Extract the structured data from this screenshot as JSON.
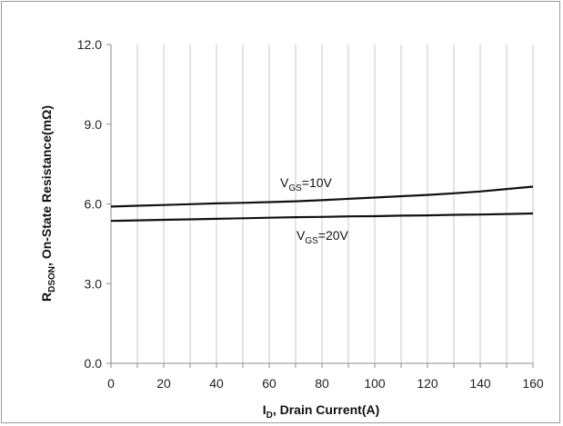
{
  "chart_data": {
    "type": "line",
    "xlabel": {
      "main": "I",
      "sub": "D",
      "rest": ", Drain Current(A)"
    },
    "ylabel": {
      "main": "R",
      "sub": "DSON",
      "rest": ", On-State Resistance(mΩ)"
    },
    "xlim": [
      0,
      160
    ],
    "ylim": [
      0,
      12
    ],
    "x_ticks": [
      0,
      10,
      20,
      30,
      40,
      50,
      60,
      70,
      80,
      90,
      100,
      110,
      120,
      130,
      140,
      150,
      160
    ],
    "x_tick_labels": [
      "0",
      "20",
      "40",
      "60",
      "80",
      "100",
      "120",
      "140",
      "160"
    ],
    "y_ticks": [
      0,
      3,
      6,
      9,
      12
    ],
    "y_tick_labels": [
      "0.0",
      "3.0",
      "6.0",
      "9.0",
      "12.0"
    ],
    "grid": "vertical",
    "series": [
      {
        "label": {
          "main": "V",
          "sub": "GS",
          "rest": "=10V"
        },
        "x": [
          0,
          10,
          20,
          30,
          40,
          50,
          60,
          70,
          80,
          90,
          100,
          110,
          120,
          130,
          140,
          150,
          160
        ],
        "y": [
          5.9,
          5.93,
          5.96,
          5.99,
          6.02,
          6.04,
          6.07,
          6.1,
          6.14,
          6.19,
          6.24,
          6.29,
          6.34,
          6.4,
          6.47,
          6.56,
          6.65
        ]
      },
      {
        "label": {
          "main": "V",
          "sub": "GS",
          "rest": "=20V"
        },
        "x": [
          0,
          10,
          20,
          30,
          40,
          50,
          60,
          70,
          80,
          90,
          100,
          110,
          120,
          130,
          140,
          150,
          160
        ],
        "y": [
          5.36,
          5.38,
          5.4,
          5.42,
          5.44,
          5.46,
          5.48,
          5.5,
          5.51,
          5.53,
          5.54,
          5.56,
          5.57,
          5.59,
          5.6,
          5.62,
          5.64
        ]
      }
    ]
  }
}
